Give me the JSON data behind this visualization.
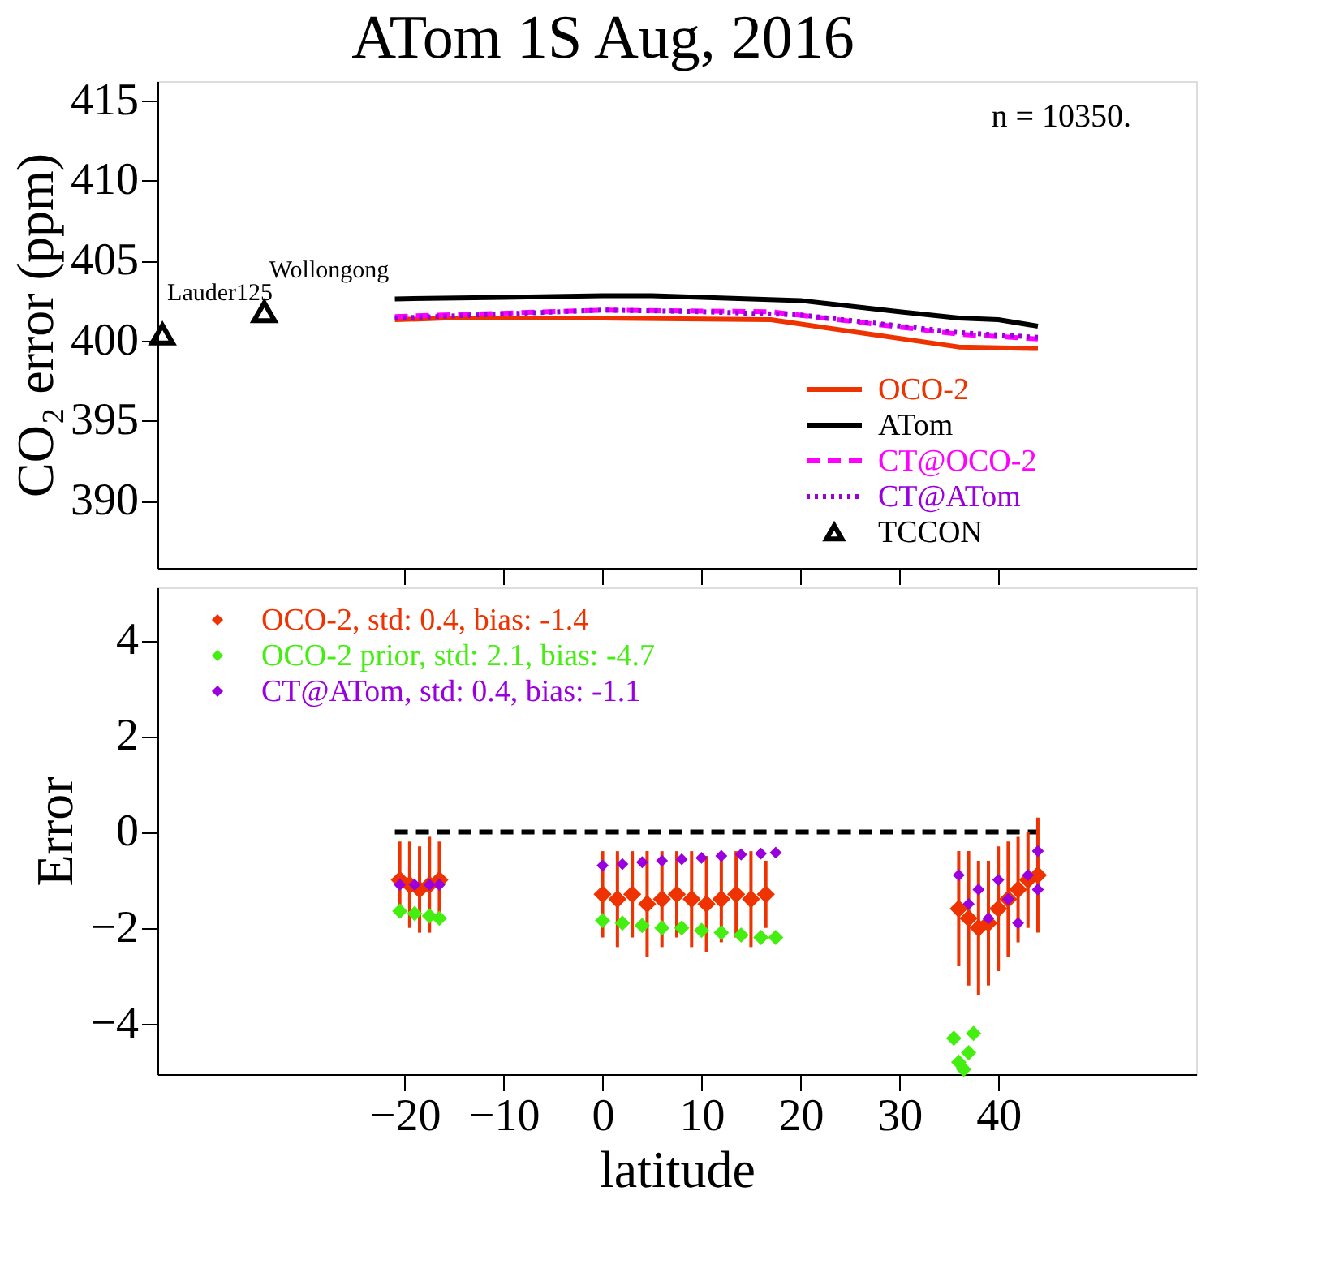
{
  "chart_data": [
    {
      "type": "line",
      "title": "ATom 1S Aug, 2016",
      "ylabel": "CO₂ error (ppm)",
      "xlim": [
        -45,
        60
      ],
      "xticks": [
        -20,
        -10,
        0,
        10,
        20,
        30,
        40
      ],
      "ylim": [
        385.8,
        416.2
      ],
      "yticks": [
        390,
        395,
        400,
        405,
        410,
        415
      ],
      "tick_labels": "y",
      "grid": false,
      "legend": "bottom right",
      "annotations": [
        "n = 10350.",
        {
          "text": "Lauder125",
          "x": -44.5,
          "y": 400.4
        },
        {
          "text": "Wollongong",
          "x": -34.2,
          "y": 401.8
        }
      ],
      "series": [
        {
          "name": "OCO-2",
          "color": "#ee3300",
          "x": [
            -21,
            -16,
            0,
            17,
            36,
            44
          ],
          "values": [
            401.3,
            401.4,
            401.4,
            401.3,
            399.6,
            399.5
          ],
          "line_style": "solid"
        },
        {
          "name": "ATom",
          "color": "#000000",
          "x": [
            -21,
            -10,
            0,
            5,
            10,
            20,
            30,
            36,
            40,
            44
          ],
          "values": [
            402.6,
            402.7,
            402.8,
            402.8,
            402.7,
            402.5,
            401.8,
            401.4,
            401.3,
            400.9
          ],
          "line_style": "solid"
        },
        {
          "name": "CT@OCO-2",
          "color": "#ff00ff",
          "x": [
            -21,
            0,
            17,
            36,
            44
          ],
          "values": [
            401.5,
            401.9,
            401.8,
            400.4,
            400.1
          ],
          "line_style": "dashed"
        },
        {
          "name": "CT@ATom",
          "color": "#9900dd",
          "x": [
            -21,
            0,
            10,
            20,
            36,
            44
          ],
          "values": [
            401.4,
            401.9,
            401.8,
            401.6,
            400.5,
            400.2
          ],
          "line_style": "dotted"
        },
        {
          "name": "TCCON",
          "type": "scatter",
          "color": "#000000",
          "marker": "triangle",
          "x": [
            -44.5,
            -34.2
          ],
          "values": [
            400.4,
            401.8
          ]
        }
      ]
    },
    {
      "type": "scatter",
      "xlabel": "latitude",
      "ylabel": "Error",
      "xlim": [
        -45,
        60
      ],
      "xticks": [
        -20,
        -10,
        0,
        10,
        20,
        30,
        40
      ],
      "ylim": [
        -5.05,
        5.1
      ],
      "yticks": [
        -4,
        -2,
        0,
        2,
        4
      ],
      "grid": false,
      "legend": "top left",
      "marker": "diamond",
      "series": [
        {
          "type": "line",
          "color": "#000000",
          "line_style": "dashed",
          "marker": "none",
          "x": [
            -21,
            44
          ],
          "values": [
            0,
            0
          ]
        },
        {
          "name": "OCO-2, std: 0.4, bias: -1.4",
          "color": "#ee3300",
          "x": [
            -20.5,
            -19.5,
            -18.5,
            -17.5,
            -16.5,
            0,
            1.5,
            3,
            4.5,
            6,
            7.5,
            9,
            10.5,
            12,
            13.5,
            15,
            16.5,
            36,
            37,
            38,
            39,
            40,
            41,
            42,
            43,
            44
          ],
          "values": [
            -1.0,
            -1.1,
            -1.2,
            -1.1,
            -1.0,
            -1.3,
            -1.4,
            -1.3,
            -1.5,
            -1.4,
            -1.3,
            -1.4,
            -1.5,
            -1.4,
            -1.3,
            -1.4,
            -1.3,
            -1.6,
            -1.8,
            -2.0,
            -1.9,
            -1.6,
            -1.4,
            -1.2,
            -1.0,
            -0.9
          ],
          "errors": [
            0.8,
            0.9,
            0.9,
            1.0,
            0.8,
            0.9,
            1.0,
            0.9,
            1.1,
            1.0,
            0.9,
            1.0,
            1.0,
            0.9,
            0.9,
            1.0,
            0.7,
            1.2,
            1.4,
            1.4,
            1.3,
            1.3,
            1.2,
            1.1,
            1.0,
            1.2
          ]
        },
        {
          "name": "OCO-2 prior, std: 2.1, bias: -4.7",
          "color": "#44ee11",
          "x": [
            -20.5,
            -19,
            -17.5,
            -16.5,
            0,
            2,
            4,
            6,
            8,
            10,
            12,
            14,
            16,
            17.5,
            35.5,
            36,
            36.5,
            37,
            37.5
          ],
          "values": [
            -1.65,
            -1.7,
            -1.75,
            -1.8,
            -1.85,
            -1.9,
            -1.95,
            -2.0,
            -2.0,
            -2.05,
            -2.1,
            -2.15,
            -2.2,
            -2.2,
            -4.3,
            -4.8,
            -4.95,
            -4.6,
            -4.2
          ]
        },
        {
          "name": "CT@ATom, std: 0.4, bias: -1.1",
          "color": "#9900dd",
          "x": [
            -20.5,
            -19,
            -17.5,
            -16.5,
            0,
            2,
            4,
            6,
            8,
            10,
            12,
            14,
            16,
            17.5,
            36,
            37,
            38,
            39,
            40,
            41,
            42,
            43,
            44,
            44
          ],
          "values": [
            -1.1,
            -1.1,
            -1.1,
            -1.1,
            -0.7,
            -0.67,
            -0.63,
            -0.6,
            -0.57,
            -0.54,
            -0.5,
            -0.47,
            -0.45,
            -0.43,
            -0.9,
            -1.5,
            -1.2,
            -1.8,
            -1.0,
            -1.4,
            -1.9,
            -0.9,
            -1.2,
            -0.4
          ]
        }
      ]
    }
  ]
}
